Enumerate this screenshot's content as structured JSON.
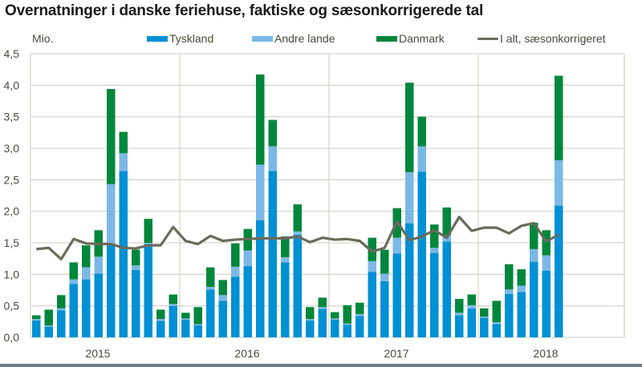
{
  "title": "Overnatninger i danske feriehuse, faktiske og sæsonkorrigerede tal",
  "unit_label": "Mio.",
  "legend": [
    {
      "label": "Tyskland",
      "color": "#0090d4",
      "kind": "bar"
    },
    {
      "label": "Andre lande",
      "color": "#7cb8e6",
      "kind": "bar"
    },
    {
      "label": "Danmark",
      "color": "#00873c",
      "kind": "bar"
    },
    {
      "label": "I alt, sæsonkorrigeret",
      "color": "#6b6a5c",
      "kind": "line"
    }
  ],
  "chart_data": {
    "type": "bar",
    "stacked": true,
    "title": "Overnatninger i danske feriehuse, faktiske og sæsonkorrigerede tal",
    "xlabel": "",
    "ylabel": "Mio.",
    "ylim": [
      0,
      4.5
    ],
    "yticks": [
      "0,0",
      "0,5",
      "1,0",
      "1,5",
      "2,0",
      "2,5",
      "3,0",
      "3,5",
      "4,0",
      "4,5"
    ],
    "xticks": [
      "2015",
      "2016",
      "2017",
      "2018"
    ],
    "grid": true,
    "legend_position": "top",
    "categories": [
      "2015-01",
      "2015-02",
      "2015-03",
      "2015-04",
      "2015-05",
      "2015-06",
      "2015-07",
      "2015-08",
      "2015-09",
      "2015-10",
      "2015-11",
      "2015-12",
      "2016-01",
      "2016-02",
      "2016-03",
      "2016-04",
      "2016-05",
      "2016-06",
      "2016-07",
      "2016-08",
      "2016-09",
      "2016-10",
      "2016-11",
      "2016-12",
      "2017-01",
      "2017-02",
      "2017-03",
      "2017-04",
      "2017-05",
      "2017-06",
      "2017-07",
      "2017-08",
      "2017-09",
      "2017-10",
      "2017-11",
      "2017-12",
      "2018-01",
      "2018-02",
      "2018-03",
      "2018-04",
      "2018-05",
      "2018-06",
      "2018-07"
    ],
    "series": [
      {
        "name": "Tyskland",
        "type": "bar",
        "values": [
          0.27,
          0.17,
          0.43,
          0.85,
          0.92,
          1.01,
          1.48,
          2.64,
          1.07,
          1.48,
          0.26,
          0.5,
          0.28,
          0.19,
          0.76,
          0.58,
          0.96,
          1.13,
          1.86,
          2.64,
          1.19,
          1.63,
          0.27,
          0.45,
          0.28,
          0.2,
          0.34,
          1.04,
          0.89,
          1.33,
          1.81,
          2.63,
          1.34,
          1.52,
          0.35,
          0.46,
          0.31,
          0.21,
          0.69,
          0.72,
          1.2,
          1.06,
          2.09
        ]
      },
      {
        "name": "Andre lande",
        "type": "bar",
        "values": [
          0.02,
          0.02,
          0.03,
          0.07,
          0.19,
          0.27,
          0.95,
          0.28,
          0.07,
          0.02,
          0.03,
          0.03,
          0.02,
          0.02,
          0.04,
          0.09,
          0.16,
          0.25,
          0.88,
          0.39,
          0.08,
          0.05,
          0.02,
          0.03,
          0.02,
          0.02,
          0.03,
          0.17,
          0.12,
          0.25,
          0.81,
          0.4,
          0.08,
          0.1,
          0.04,
          0.05,
          0.02,
          0.03,
          0.07,
          0.1,
          0.2,
          0.24,
          0.72
        ]
      },
      {
        "name": "Danmark",
        "type": "bar",
        "values": [
          0.06,
          0.25,
          0.21,
          0.27,
          0.35,
          0.42,
          1.51,
          0.34,
          0.25,
          0.38,
          0.15,
          0.15,
          0.09,
          0.27,
          0.31,
          0.24,
          0.37,
          0.34,
          1.43,
          0.42,
          0.33,
          0.43,
          0.19,
          0.15,
          0.1,
          0.29,
          0.18,
          0.37,
          0.38,
          0.47,
          1.42,
          0.47,
          0.37,
          0.44,
          0.22,
          0.17,
          0.13,
          0.34,
          0.4,
          0.26,
          0.42,
          0.4,
          1.34
        ]
      },
      {
        "name": "I alt, sæsonkorrigeret",
        "type": "line",
        "values": [
          1.4,
          1.42,
          1.24,
          1.56,
          1.49,
          1.48,
          1.48,
          1.42,
          1.41,
          1.46,
          1.46,
          1.75,
          1.53,
          1.48,
          1.61,
          1.53,
          1.55,
          1.56,
          1.57,
          1.57,
          1.57,
          1.6,
          1.51,
          1.58,
          1.55,
          1.56,
          1.53,
          1.36,
          1.42,
          1.84,
          1.54,
          1.6,
          1.7,
          1.58,
          1.91,
          1.69,
          1.74,
          1.74,
          1.65,
          1.77,
          1.81,
          1.52,
          1.63
        ]
      }
    ]
  }
}
